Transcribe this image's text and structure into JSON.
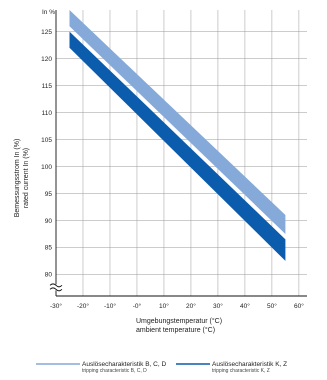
{
  "chart_data": {
    "type": "area",
    "y_unit_label": "In %",
    "ylabel_line1": "Bemessungsstrom In (%)",
    "ylabel_line2": "rated current In (%)",
    "xlabel_line1": "Umgebungstemperatur (°C)",
    "xlabel_line2": "ambient temperature (°C)",
    "x_ticks": [
      "-30°",
      "-20°",
      "-10°",
      "-0°",
      "10°",
      "20°",
      "30°",
      "40°",
      "50°",
      "60°"
    ],
    "x_tick_values": [
      -30,
      -20,
      -10,
      0,
      10,
      20,
      30,
      40,
      50,
      60
    ],
    "y_ticks": [
      "80",
      "85",
      "90",
      "95",
      "100",
      "105",
      "110",
      "115",
      "120",
      "125"
    ],
    "y_tick_values": [
      80,
      85,
      90,
      95,
      100,
      105,
      110,
      115,
      120,
      125
    ],
    "xlim": [
      -30,
      63
    ],
    "ylim": [
      76,
      129
    ],
    "axis_break": true,
    "grid": true,
    "legend_position": "bottom",
    "series": [
      {
        "name": "Auslösecharakteristik B, C, D",
        "name_en": "tripping characteristic B, C, D",
        "color": "#85a9d8",
        "x": [
          -25,
          55
        ],
        "upper": [
          129,
          91
        ],
        "lower": [
          126,
          87.5
        ]
      },
      {
        "name": "Auslösecharakteristik K, Z",
        "name_en": "tripping characteristic K, Z",
        "color": "#0b5cad",
        "x": [
          -25,
          55
        ],
        "upper": [
          125,
          86.5
        ],
        "lower": [
          122,
          82.5
        ]
      }
    ]
  }
}
